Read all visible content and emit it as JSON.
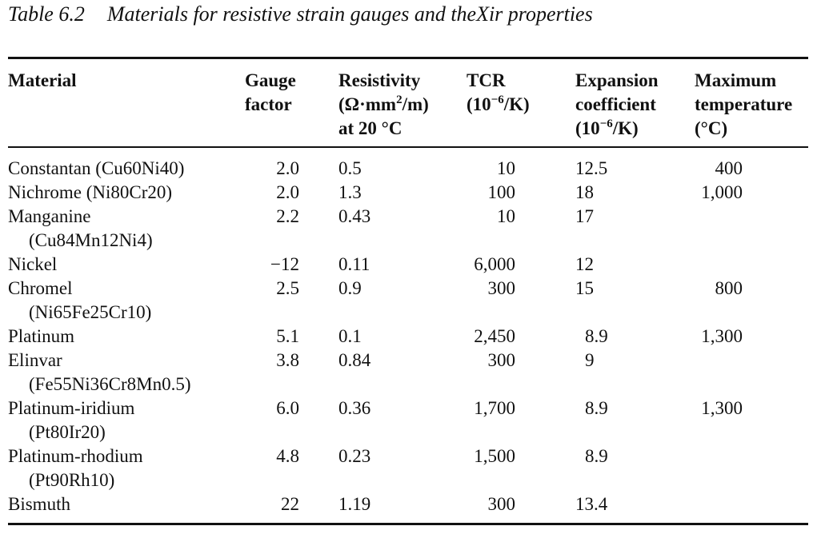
{
  "caption": {
    "number": "Table 6.2",
    "title": "Materials for resistive strain gauges and theXir properties"
  },
  "headers": {
    "material": [
      "Material"
    ],
    "gauge_factor": [
      "Gauge",
      "factor"
    ],
    "resistivity": [
      "Resistivity",
      "(Ω·mm",
      "2",
      "/m)",
      "at 20 °C"
    ],
    "tcr": [
      "TCR",
      "(10",
      "−6",
      "/K)"
    ],
    "expansion": [
      "Expansion",
      "coefficient",
      "(10",
      "−6",
      "/K)"
    ],
    "max_temp": [
      "Maximum",
      "temperature",
      "(°C)"
    ]
  },
  "rows": [
    {
      "material": "Constantan (Cu60Ni40)",
      "material2": "",
      "gf": "2.0",
      "res": "0.5",
      "tcr": "10",
      "exp": "12.5",
      "max": "400"
    },
    {
      "material": "Nichrome (Ni80Cr20)",
      "material2": "",
      "gf": "2.0",
      "res": "1.3",
      "tcr": "100",
      "exp": "18",
      "max": "1,000"
    },
    {
      "material": "Manganine",
      "material2": "(Cu84Mn12Ni4)",
      "gf": "2.2",
      "res": "0.43",
      "tcr": "10",
      "exp": "17",
      "max": ""
    },
    {
      "material": "Nickel",
      "material2": "",
      "gf": "−12",
      "res": "0.11",
      "tcr": "6,000",
      "exp": "12",
      "max": ""
    },
    {
      "material": "Chromel",
      "material2": "(Ni65Fe25Cr10)",
      "gf": "2.5",
      "res": "0.9",
      "tcr": "300",
      "exp": "15",
      "max": "800"
    },
    {
      "material": "Platinum",
      "material2": "",
      "gf": "5.1",
      "res": "0.1",
      "tcr": "2,450",
      "exp": "8.9",
      "max": "1,300"
    },
    {
      "material": "Elinvar",
      "material2": "(Fe55Ni36Cr8Mn0.5)",
      "gf": "3.8",
      "res": "0.84",
      "tcr": "300",
      "exp": "9",
      "max": ""
    },
    {
      "material": "Platinum-iridium",
      "material2": "(Pt80Ir20)",
      "gf": "6.0",
      "res": "0.36",
      "tcr": "1,700",
      "exp": "8.9",
      "max": "1,300"
    },
    {
      "material": "Platinum-rhodium",
      "material2": "(Pt90Rh10)",
      "gf": "4.8",
      "res": "0.23",
      "tcr": "1,500",
      "exp": "8.9",
      "max": ""
    },
    {
      "material": "Bismuth",
      "material2": "",
      "gf": "22",
      "res": "1.19",
      "tcr": "300",
      "exp": "13.4",
      "max": ""
    }
  ]
}
